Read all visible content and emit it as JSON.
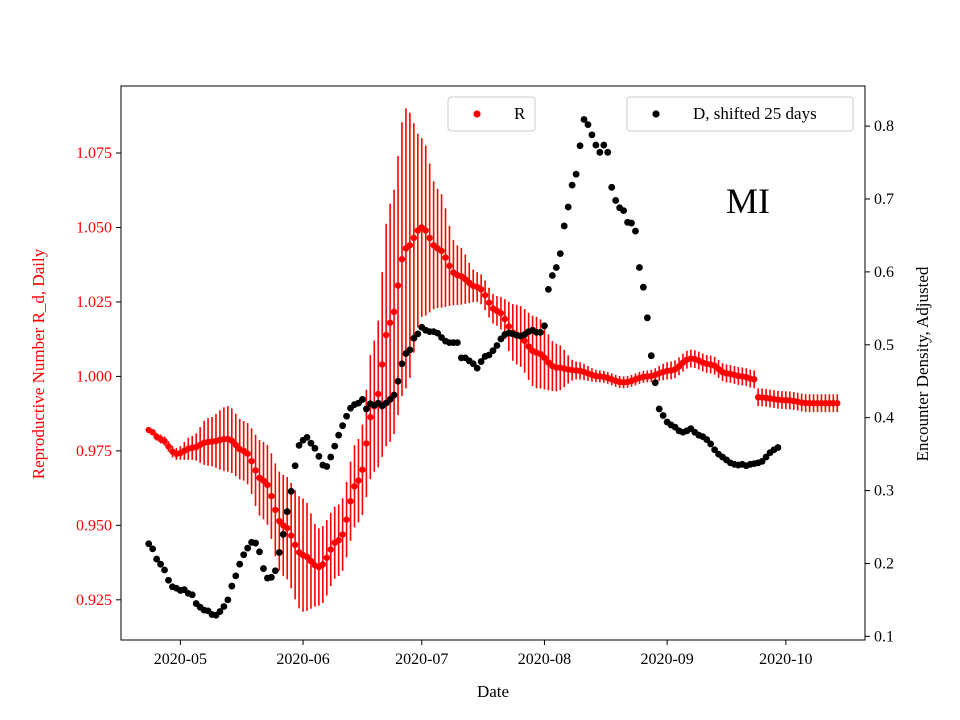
{
  "chart_data": {
    "type": "scatter",
    "annotation": "MI",
    "xlabel": "Date",
    "ylabel_left": "Reproductive Number R_d, Daily",
    "ylabel_right": "Encounter Density, Adjusted",
    "x_ticks": [
      "2020-05",
      "2020-06",
      "2020-07",
      "2020-08",
      "2020-09",
      "2020-10"
    ],
    "xlim": [
      "2020-04-16",
      "2020-10-21"
    ],
    "ylim_left": [
      0.9115,
      1.0975
    ],
    "ylim_right": [
      0.095,
      0.855
    ],
    "y_ticks_left": [
      "0.925",
      "0.950",
      "0.975",
      "1.000",
      "1.025",
      "1.050",
      "1.075"
    ],
    "y_ticks_right": [
      "0.1",
      "0.2",
      "0.3",
      "0.4",
      "0.5",
      "0.6",
      "0.7",
      "0.8"
    ],
    "colors": {
      "R": "#ff0000",
      "D": "#000000",
      "left_axis_text": "#ff0000"
    },
    "legend_R": {
      "label": "R",
      "placement": "upper-center"
    },
    "legend_D": {
      "label": "D, shifted 25 days",
      "placement": "upper-right"
    },
    "series_R": {
      "name": "R",
      "start_date": "2020-04-23",
      "end_date": "2020-10-14",
      "keypoints": [
        [
          "2020-04-23",
          0.982,
          0.0008
        ],
        [
          "2020-04-26",
          0.979,
          0.0015
        ],
        [
          "2020-04-30",
          0.974,
          0.002
        ],
        [
          "2020-05-04",
          0.976,
          0.004
        ],
        [
          "2020-05-08",
          0.978,
          0.008
        ],
        [
          "2020-05-13",
          0.979,
          0.011
        ],
        [
          "2020-05-17",
          0.975,
          0.01
        ],
        [
          "2020-05-22",
          0.965,
          0.013
        ],
        [
          "2020-05-27",
          0.95,
          0.017
        ],
        [
          "2020-06-01",
          0.94,
          0.019
        ],
        [
          "2020-06-05",
          0.936,
          0.013
        ],
        [
          "2020-06-10",
          0.945,
          0.012
        ],
        [
          "2020-06-15",
          0.965,
          0.014
        ],
        [
          "2020-06-19",
          0.99,
          0.022
        ],
        [
          "2020-06-23",
          1.018,
          0.04
        ],
        [
          "2020-06-27",
          1.043,
          0.047
        ],
        [
          "2020-07-01",
          1.05,
          0.03
        ],
        [
          "2020-07-05",
          1.043,
          0.02
        ],
        [
          "2020-07-10",
          1.034,
          0.01
        ],
        [
          "2020-07-15",
          1.03,
          0.005
        ],
        [
          "2020-07-20",
          1.022,
          0.005
        ],
        [
          "2020-07-25",
          1.014,
          0.01
        ],
        [
          "2020-07-30",
          1.008,
          0.012
        ],
        [
          "2020-08-04",
          1.003,
          0.008
        ],
        [
          "2020-08-09",
          1.002,
          0.003
        ],
        [
          "2020-08-15",
          1.0,
          0.002
        ],
        [
          "2020-08-21",
          0.998,
          0.002
        ],
        [
          "2020-08-27",
          1.0,
          0.002
        ],
        [
          "2020-09-02",
          1.002,
          0.003
        ],
        [
          "2020-09-07",
          1.006,
          0.003
        ],
        [
          "2020-09-12",
          1.004,
          0.003
        ],
        [
          "2020-09-16",
          1.001,
          0.003
        ],
        [
          "2020-09-20",
          1.0,
          0.003
        ],
        [
          "2020-09-23",
          0.999,
          0.003
        ],
        [
          "2020-09-24",
          0.993,
          0.003
        ],
        [
          "2020-10-01",
          0.992,
          0.003
        ],
        [
          "2020-10-07",
          0.991,
          0.003
        ],
        [
          "2020-10-14",
          0.991,
          0.003
        ]
      ]
    },
    "series_D": {
      "name": "D, shifted 25 days",
      "points": [
        [
          "2020-04-23",
          0.227
        ],
        [
          "2020-04-24",
          0.22
        ],
        [
          "2020-04-25",
          0.206
        ],
        [
          "2020-04-26",
          0.199
        ],
        [
          "2020-04-27",
          0.191
        ],
        [
          "2020-04-28",
          0.177
        ],
        [
          "2020-04-29",
          0.168
        ],
        [
          "2020-04-30",
          0.166
        ],
        [
          "2020-05-01",
          0.163
        ],
        [
          "2020-05-02",
          0.164
        ],
        [
          "2020-05-03",
          0.159
        ],
        [
          "2020-05-04",
          0.157
        ],
        [
          "2020-05-05",
          0.145
        ],
        [
          "2020-05-06",
          0.14
        ],
        [
          "2020-05-07",
          0.136
        ],
        [
          "2020-05-08",
          0.135
        ],
        [
          "2020-05-09",
          0.13
        ],
        [
          "2020-05-10",
          0.129
        ],
        [
          "2020-05-11",
          0.134
        ],
        [
          "2020-05-12",
          0.141
        ],
        [
          "2020-05-13",
          0.15
        ],
        [
          "2020-05-14",
          0.169
        ],
        [
          "2020-05-15",
          0.183
        ],
        [
          "2020-05-16",
          0.199
        ],
        [
          "2020-05-17",
          0.212
        ],
        [
          "2020-05-18",
          0.221
        ],
        [
          "2020-05-19",
          0.229
        ],
        [
          "2020-05-20",
          0.228
        ],
        [
          "2020-05-21",
          0.216
        ],
        [
          "2020-05-22",
          0.193
        ],
        [
          "2020-05-23",
          0.18
        ],
        [
          "2020-05-24",
          0.181
        ],
        [
          "2020-05-25",
          0.19
        ],
        [
          "2020-05-26",
          0.215
        ],
        [
          "2020-05-27",
          0.24
        ],
        [
          "2020-05-28",
          0.271
        ],
        [
          "2020-05-29",
          0.299
        ],
        [
          "2020-05-30",
          0.334
        ],
        [
          "2020-05-31",
          0.362
        ],
        [
          "2020-06-01",
          0.369
        ],
        [
          "2020-06-02",
          0.373
        ],
        [
          "2020-06-03",
          0.365
        ],
        [
          "2020-06-04",
          0.358
        ],
        [
          "2020-06-05",
          0.347
        ],
        [
          "2020-06-06",
          0.335
        ],
        [
          "2020-06-07",
          0.333
        ],
        [
          "2020-06-08",
          0.346
        ],
        [
          "2020-06-09",
          0.361
        ],
        [
          "2020-06-10",
          0.376
        ],
        [
          "2020-06-11",
          0.389
        ],
        [
          "2020-06-12",
          0.402
        ],
        [
          "2020-06-13",
          0.413
        ],
        [
          "2020-06-14",
          0.418
        ],
        [
          "2020-06-15",
          0.42
        ],
        [
          "2020-06-16",
          0.425
        ],
        [
          "2020-06-17",
          0.412
        ],
        [
          "2020-06-18",
          0.419
        ],
        [
          "2020-06-19",
          0.417
        ],
        [
          "2020-06-20",
          0.42
        ],
        [
          "2020-06-21",
          0.416
        ],
        [
          "2020-06-22",
          0.42
        ],
        [
          "2020-06-23",
          0.425
        ],
        [
          "2020-06-24",
          0.431
        ],
        [
          "2020-06-25",
          0.45
        ],
        [
          "2020-06-26",
          0.474
        ],
        [
          "2020-06-27",
          0.488
        ],
        [
          "2020-06-28",
          0.493
        ],
        [
          "2020-06-29",
          0.509
        ],
        [
          "2020-06-30",
          0.515
        ],
        [
          "2020-07-01",
          0.524
        ],
        [
          "2020-07-02",
          0.52
        ],
        [
          "2020-07-03",
          0.518
        ],
        [
          "2020-07-04",
          0.518
        ],
        [
          "2020-07-05",
          0.516
        ],
        [
          "2020-07-06",
          0.51
        ],
        [
          "2020-07-07",
          0.505
        ],
        [
          "2020-07-08",
          0.503
        ],
        [
          "2020-07-09",
          0.503
        ],
        [
          "2020-07-10",
          0.503
        ],
        [
          "2020-07-11",
          0.482
        ],
        [
          "2020-07-12",
          0.482
        ],
        [
          "2020-07-13",
          0.478
        ],
        [
          "2020-07-14",
          0.474
        ],
        [
          "2020-07-15",
          0.468
        ],
        [
          "2020-07-16",
          0.477
        ],
        [
          "2020-07-17",
          0.484
        ],
        [
          "2020-07-18",
          0.486
        ],
        [
          "2020-07-19",
          0.492
        ],
        [
          "2020-07-20",
          0.499
        ],
        [
          "2020-07-21",
          0.508
        ],
        [
          "2020-07-22",
          0.514
        ],
        [
          "2020-07-23",
          0.516
        ],
        [
          "2020-07-24",
          0.515
        ],
        [
          "2020-07-25",
          0.513
        ],
        [
          "2020-07-26",
          0.512
        ],
        [
          "2020-07-27",
          0.514
        ],
        [
          "2020-07-28",
          0.518
        ],
        [
          "2020-07-29",
          0.52
        ],
        [
          "2020-07-30",
          0.517
        ],
        [
          "2020-07-31",
          0.517
        ],
        [
          "2020-08-01",
          0.526
        ],
        [
          "2020-08-02",
          0.576
        ],
        [
          "2020-08-03",
          0.595
        ],
        [
          "2020-08-04",
          0.606
        ],
        [
          "2020-08-05",
          0.625
        ],
        [
          "2020-08-06",
          0.663
        ],
        [
          "2020-08-07",
          0.689
        ],
        [
          "2020-08-08",
          0.719
        ],
        [
          "2020-08-09",
          0.734
        ],
        [
          "2020-08-10",
          0.773
        ],
        [
          "2020-08-11",
          0.809
        ],
        [
          "2020-08-12",
          0.802
        ],
        [
          "2020-08-13",
          0.788
        ],
        [
          "2020-08-14",
          0.774
        ],
        [
          "2020-08-15",
          0.764
        ],
        [
          "2020-08-16",
          0.774
        ],
        [
          "2020-08-17",
          0.764
        ],
        [
          "2020-08-18",
          0.716
        ],
        [
          "2020-08-19",
          0.698
        ],
        [
          "2020-08-20",
          0.688
        ],
        [
          "2020-08-21",
          0.684
        ],
        [
          "2020-08-22",
          0.668
        ],
        [
          "2020-08-23",
          0.667
        ],
        [
          "2020-08-24",
          0.656
        ],
        [
          "2020-08-25",
          0.606
        ],
        [
          "2020-08-26",
          0.579
        ],
        [
          "2020-08-27",
          0.537
        ],
        [
          "2020-08-28",
          0.485
        ],
        [
          "2020-08-29",
          0.448
        ],
        [
          "2020-08-30",
          0.412
        ],
        [
          "2020-08-31",
          0.403
        ],
        [
          "2020-09-01",
          0.394
        ],
        [
          "2020-09-02",
          0.39
        ],
        [
          "2020-09-03",
          0.387
        ],
        [
          "2020-09-04",
          0.382
        ],
        [
          "2020-09-05",
          0.38
        ],
        [
          "2020-09-06",
          0.382
        ],
        [
          "2020-09-07",
          0.385
        ],
        [
          "2020-09-08",
          0.38
        ],
        [
          "2020-09-09",
          0.376
        ],
        [
          "2020-09-10",
          0.374
        ],
        [
          "2020-09-11",
          0.37
        ],
        [
          "2020-09-12",
          0.364
        ],
        [
          "2020-09-13",
          0.356
        ],
        [
          "2020-09-14",
          0.35
        ],
        [
          "2020-09-15",
          0.346
        ],
        [
          "2020-09-16",
          0.342
        ],
        [
          "2020-09-17",
          0.338
        ],
        [
          "2020-09-18",
          0.336
        ],
        [
          "2020-09-19",
          0.335
        ],
        [
          "2020-09-20",
          0.336
        ],
        [
          "2020-09-21",
          0.334
        ],
        [
          "2020-09-22",
          0.336
        ],
        [
          "2020-09-23",
          0.337
        ],
        [
          "2020-09-24",
          0.338
        ],
        [
          "2020-09-25",
          0.34
        ],
        [
          "2020-09-26",
          0.346
        ],
        [
          "2020-09-27",
          0.352
        ],
        [
          "2020-09-28",
          0.356
        ],
        [
          "2020-09-29",
          0.359
        ]
      ]
    }
  }
}
